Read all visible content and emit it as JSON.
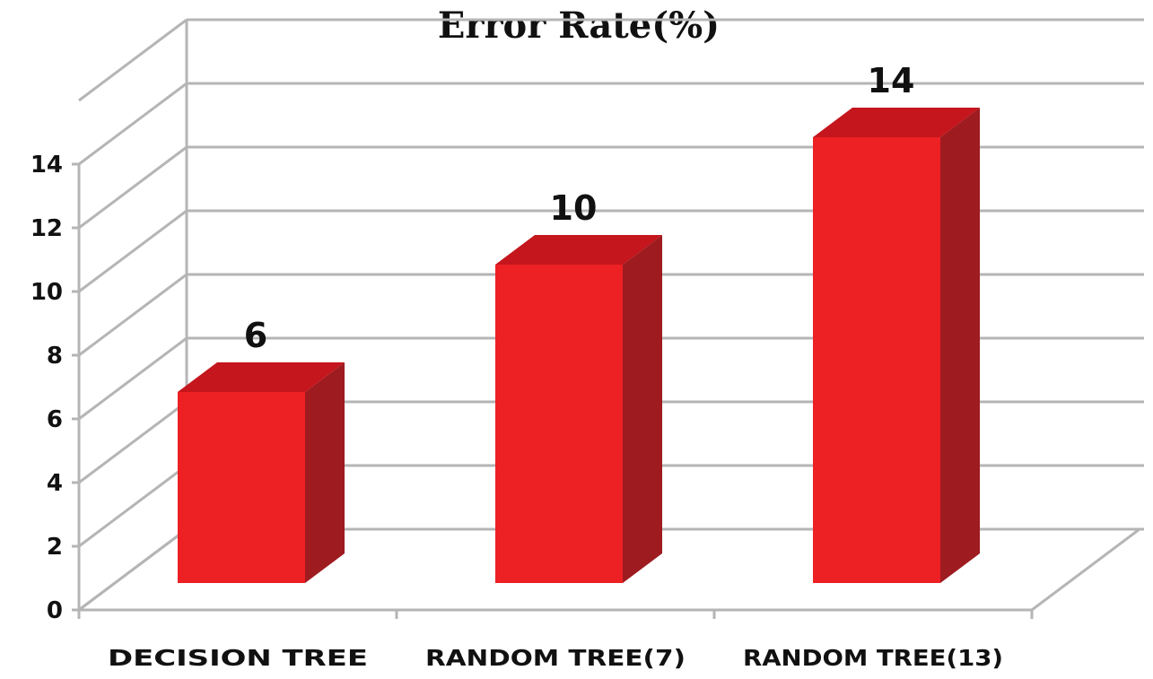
{
  "chart_data": {
    "type": "bar",
    "title": "Error Rate(%)",
    "categories": [
      "DECISION TREE",
      "RANDOM TREE(7)",
      "RANDOM TREE(13)"
    ],
    "values": [
      6,
      10,
      14
    ],
    "data_labels": [
      "6",
      "10",
      "14"
    ],
    "yticks": [
      "0",
      "2",
      "4",
      "6",
      "8",
      "10",
      "12",
      "14"
    ],
    "ylim": [
      0,
      16
    ],
    "xlabel": "",
    "ylabel": "",
    "grid": true,
    "legend": "none",
    "style": "3d-column",
    "colors": {
      "front": "#ED2024",
      "side": "#9E1B20",
      "top": "#C4161C",
      "grid": "#B5B5B5"
    }
  }
}
